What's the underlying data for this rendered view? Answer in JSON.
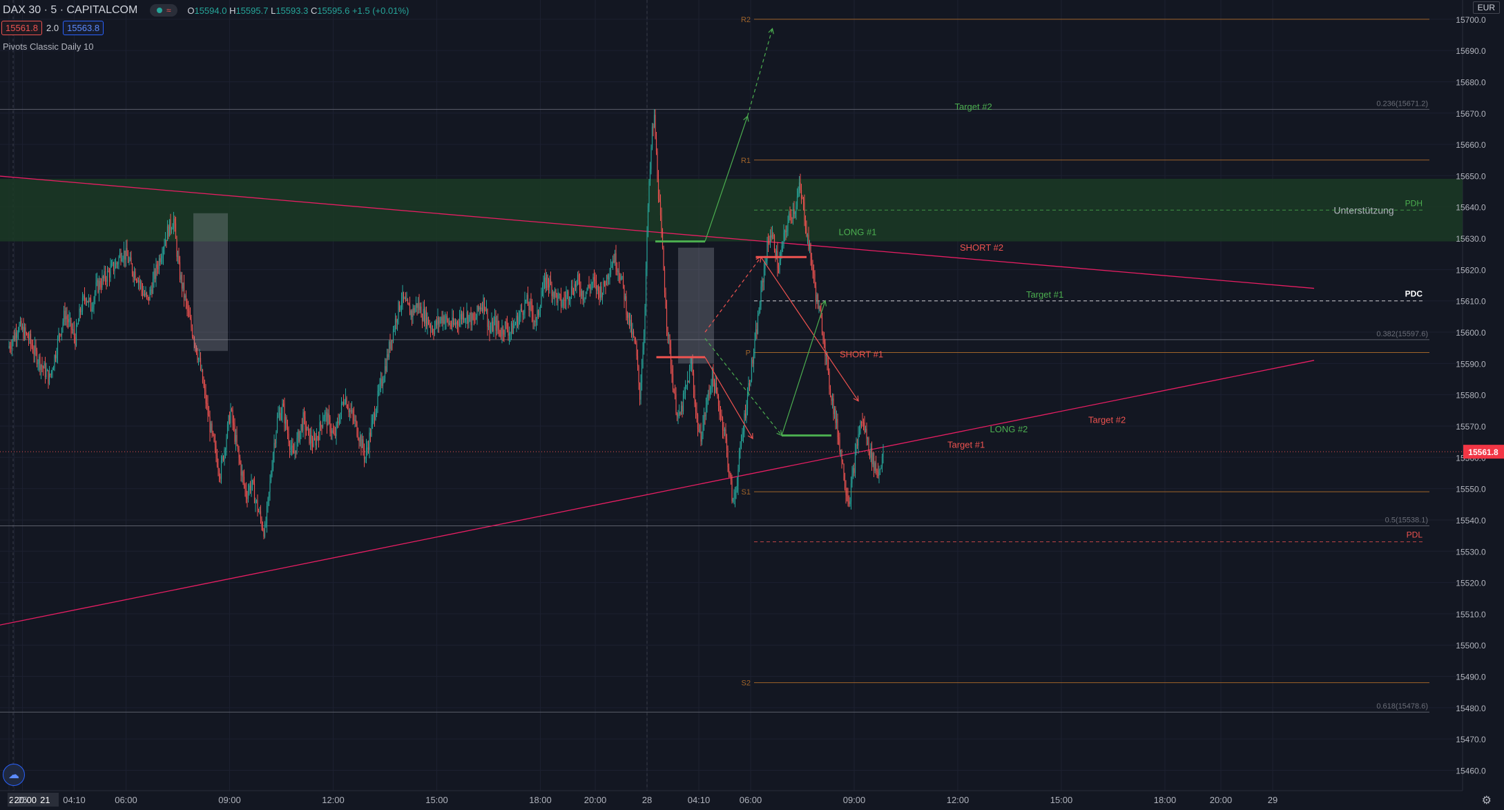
{
  "header": {
    "symbol": "DAX 30 · 5 · CAPITALCOM",
    "ohlc": {
      "o": "15594.0",
      "h": "15595.7",
      "l": "15593.3",
      "c": "15595.6",
      "chg": "+1.5 (+0.01%)"
    },
    "bid": "15561.8",
    "spread": "2.0",
    "ask": "15563.8",
    "indicator": "Pivots Classic Daily 10",
    "currency": "EUR"
  },
  "chart_data": {
    "type": "candlestick",
    "y_axis": {
      "min": 15450,
      "max": 15710,
      "ticks": [
        15460,
        15470,
        15480,
        15490,
        15500,
        15510,
        15520,
        15530,
        15540,
        15550,
        15560,
        15570,
        15580,
        15590,
        15600,
        15610,
        15620,
        15630,
        15640,
        15650,
        15660,
        15670,
        15680,
        15690,
        15700
      ]
    },
    "x_axis_labels": [
      {
        "t": 0,
        "label": "24 Jun '21",
        "highlight": true
      },
      {
        "t": 5,
        "label": "20:00",
        "highlight": true
      },
      {
        "t": 13,
        "label": "25"
      },
      {
        "t": 63,
        "label": "04:10"
      },
      {
        "t": 113,
        "label": "06:00"
      },
      {
        "t": 213,
        "label": "09:00"
      },
      {
        "t": 313,
        "label": "12:00"
      },
      {
        "t": 413,
        "label": "15:00"
      },
      {
        "t": 513,
        "label": "18:00"
      },
      {
        "t": 566,
        "label": "20:00"
      },
      {
        "t": 616,
        "label": "28"
      },
      {
        "t": 666,
        "label": "04:10"
      },
      {
        "t": 716,
        "label": "06:00"
      },
      {
        "t": 816,
        "label": "09:00"
      },
      {
        "t": 916,
        "label": "12:00"
      },
      {
        "t": 1016,
        "label": "15:00"
      },
      {
        "t": 1116,
        "label": "18:00"
      },
      {
        "t": 1170,
        "label": "20:00"
      },
      {
        "t": 1220,
        "label": "29"
      }
    ],
    "last_price": 15561.8,
    "pivots": [
      {
        "name": "R2",
        "value": 15700.0
      },
      {
        "name": "R1",
        "value": 15655.0
      },
      {
        "name": "P",
        "value": 15593.5
      },
      {
        "name": "S1",
        "value": 15549.0
      },
      {
        "name": "S2",
        "value": 15488.0
      }
    ],
    "fib_levels": [
      {
        "label": "0.236(15671.2)",
        "value": 15671.2
      },
      {
        "label": "0.382(15597.6)",
        "value": 15597.6
      },
      {
        "label": "0.5(15538.1)",
        "value": 15538.1
      },
      {
        "label": "0.618(15478.6)",
        "value": 15478.6
      }
    ],
    "levels": [
      {
        "label": "PDH",
        "value": 15639,
        "color": "#4caf50"
      },
      {
        "label": "PDC",
        "value": 15610,
        "color": "#ffffff"
      },
      {
        "label": "PDL",
        "value": 15533,
        "color": "#ef5350"
      }
    ],
    "support_zone": {
      "label": "Unterstützung",
      "from": 15629,
      "to": 15649
    },
    "trendlines": [
      {
        "t1": -120,
        "p1": 15653,
        "t2": 1260,
        "p2": 15614
      },
      {
        "t1": -120,
        "p1": 15499,
        "t2": 1260,
        "p2": 15591
      }
    ],
    "annotations": [
      {
        "text": "LONG #1",
        "t": 809,
        "p": 15631,
        "color": "#4caf50"
      },
      {
        "text": "SHORT #1",
        "t": 810,
        "p": 15592,
        "color": "#ef5350"
      },
      {
        "text": "SHORT #2",
        "t": 926,
        "p": 15626,
        "color": "#ef5350"
      },
      {
        "text": "LONG #2",
        "t": 955,
        "p": 15568,
        "color": "#4caf50"
      },
      {
        "text": "Target #2",
        "t": 921,
        "p": 15671,
        "color": "#4caf50"
      },
      {
        "text": "Target #1",
        "t": 914,
        "p": 15563,
        "color": "#ef5350"
      },
      {
        "text": "Target #2",
        "t": 1050,
        "p": 15571,
        "color": "#ef5350"
      },
      {
        "text": "Target #1",
        "t": 990,
        "p": 15611,
        "color": "#4caf50"
      }
    ],
    "path_points": [
      [
        0,
        15595
      ],
      [
        5,
        15598
      ],
      [
        10,
        15602
      ],
      [
        15,
        15600
      ],
      [
        20,
        15598
      ],
      [
        25,
        15594
      ],
      [
        30,
        15591
      ],
      [
        35,
        15588
      ],
      [
        40,
        15585
      ],
      [
        45,
        15592
      ],
      [
        50,
        15600
      ],
      [
        55,
        15606
      ],
      [
        60,
        15602
      ],
      [
        65,
        15598
      ],
      [
        70,
        15607
      ],
      [
        75,
        15612
      ],
      [
        80,
        15608
      ],
      [
        85,
        15614
      ],
      [
        90,
        15616
      ],
      [
        95,
        15618
      ],
      [
        100,
        15620
      ],
      [
        105,
        15622
      ],
      [
        110,
        15626
      ],
      [
        115,
        15624
      ],
      [
        120,
        15620
      ],
      [
        125,
        15618
      ],
      [
        130,
        15613
      ],
      [
        135,
        15610
      ],
      [
        140,
        15616
      ],
      [
        145,
        15622
      ],
      [
        150,
        15628
      ],
      [
        155,
        15633
      ],
      [
        160,
        15636
      ],
      [
        162,
        15629
      ],
      [
        165,
        15620
      ],
      [
        170,
        15612
      ],
      [
        175,
        15604
      ],
      [
        180,
        15598
      ],
      [
        185,
        15590
      ],
      [
        190,
        15580
      ],
      [
        195,
        15570
      ],
      [
        200,
        15562
      ],
      [
        205,
        15555
      ],
      [
        210,
        15565
      ],
      [
        215,
        15575
      ],
      [
        220,
        15565
      ],
      [
        225,
        15556
      ],
      [
        230,
        15548
      ],
      [
        235,
        15552
      ],
      [
        240,
        15545
      ],
      [
        245,
        15539
      ],
      [
        248,
        15536
      ],
      [
        252,
        15548
      ],
      [
        256,
        15562
      ],
      [
        260,
        15572
      ],
      [
        265,
        15576
      ],
      [
        270,
        15568
      ],
      [
        275,
        15560
      ],
      [
        280,
        15566
      ],
      [
        285,
        15572
      ],
      [
        290,
        15567
      ],
      [
        295,
        15564
      ],
      [
        300,
        15568
      ],
      [
        305,
        15574
      ],
      [
        310,
        15571
      ],
      [
        315,
        15566
      ],
      [
        320,
        15573
      ],
      [
        325,
        15580
      ],
      [
        330,
        15575
      ],
      [
        335,
        15571
      ],
      [
        340,
        15566
      ],
      [
        345,
        15560
      ],
      [
        350,
        15568
      ],
      [
        355,
        15576
      ],
      [
        360,
        15583
      ],
      [
        365,
        15590
      ],
      [
        370,
        15598
      ],
      [
        375,
        15605
      ],
      [
        380,
        15611
      ],
      [
        385,
        15608
      ],
      [
        390,
        15606
      ],
      [
        395,
        15609
      ],
      [
        400,
        15606
      ],
      [
        405,
        15604
      ],
      [
        410,
        15601
      ],
      [
        415,
        15603
      ],
      [
        420,
        15605
      ],
      [
        425,
        15603
      ],
      [
        430,
        15602
      ],
      [
        435,
        15604
      ],
      [
        440,
        15606
      ],
      [
        445,
        15605
      ],
      [
        450,
        15603
      ],
      [
        455,
        15608
      ],
      [
        460,
        15610
      ],
      [
        465,
        15600
      ],
      [
        470,
        15603
      ],
      [
        475,
        15600
      ],
      [
        480,
        15602
      ],
      [
        485,
        15600
      ],
      [
        490,
        15603
      ],
      [
        495,
        15606
      ],
      [
        500,
        15610
      ],
      [
        505,
        15607
      ],
      [
        510,
        15603
      ],
      [
        515,
        15612
      ],
      [
        520,
        15617
      ],
      [
        525,
        15614
      ],
      [
        530,
        15611
      ],
      [
        535,
        15609
      ],
      [
        540,
        15612
      ],
      [
        545,
        15614
      ],
      [
        550,
        15616
      ],
      [
        555,
        15612
      ],
      [
        560,
        15614
      ],
      [
        565,
        15616
      ],
      [
        570,
        15613
      ],
      [
        575,
        15614
      ],
      [
        580,
        15620
      ],
      [
        585,
        15624
      ],
      [
        590,
        15620
      ],
      [
        594,
        15614
      ],
      [
        598,
        15606
      ],
      [
        602,
        15600
      ],
      [
        606,
        15595
      ],
      [
        610,
        15580
      ],
      [
        614,
        15600
      ],
      [
        618,
        15640
      ],
      [
        622,
        15664
      ],
      [
        624,
        15668
      ],
      [
        628,
        15645
      ],
      [
        632,
        15625
      ],
      [
        636,
        15604
      ],
      [
        640,
        15590
      ],
      [
        644,
        15578
      ],
      [
        648,
        15572
      ],
      [
        652,
        15578
      ],
      [
        656,
        15584
      ],
      [
        660,
        15590
      ],
      [
        664,
        15575
      ],
      [
        668,
        15566
      ],
      [
        672,
        15572
      ],
      [
        676,
        15580
      ],
      [
        680,
        15586
      ],
      [
        684,
        15580
      ],
      [
        688,
        15574
      ],
      [
        692,
        15568
      ],
      [
        696,
        15556
      ],
      [
        700,
        15545
      ],
      [
        704,
        15553
      ],
      [
        708,
        15565
      ],
      [
        712,
        15575
      ],
      [
        716,
        15585
      ],
      [
        720,
        15593
      ],
      [
        724,
        15604
      ],
      [
        728,
        15615
      ],
      [
        732,
        15625
      ],
      [
        736,
        15632
      ],
      [
        740,
        15628
      ],
      [
        744,
        15620
      ],
      [
        748,
        15628
      ],
      [
        752,
        15634
      ],
      [
        756,
        15638
      ],
      [
        760,
        15640
      ],
      [
        764,
        15646
      ],
      [
        768,
        15640
      ],
      [
        772,
        15630
      ],
      [
        776,
        15622
      ],
      [
        780,
        15612
      ],
      [
        784,
        15605
      ],
      [
        788,
        15598
      ],
      [
        792,
        15585
      ],
      [
        796,
        15578
      ],
      [
        800,
        15570
      ],
      [
        804,
        15562
      ],
      [
        808,
        15552
      ],
      [
        812,
        15546
      ],
      [
        816,
        15555
      ],
      [
        820,
        15565
      ],
      [
        824,
        15572
      ],
      [
        828,
        15568
      ],
      [
        832,
        15562
      ],
      [
        836,
        15558
      ],
      [
        840,
        15555
      ],
      [
        844,
        15560
      ]
    ]
  }
}
